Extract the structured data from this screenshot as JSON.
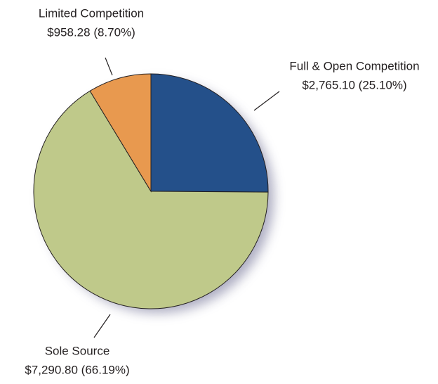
{
  "chart_data": {
    "type": "pie",
    "categories": [
      "Full & Open Competition",
      "Sole Source",
      "Limited Competition"
    ],
    "values": [
      2765.1,
      7290.8,
      958.28
    ],
    "value_labels": [
      "$2,765.10 (25.10%)",
      "$7,290.80 (66.19%)",
      "$958.28 (8.70%)"
    ],
    "colors": [
      "#24508a",
      "#bfc98a",
      "#e8994f"
    ]
  }
}
